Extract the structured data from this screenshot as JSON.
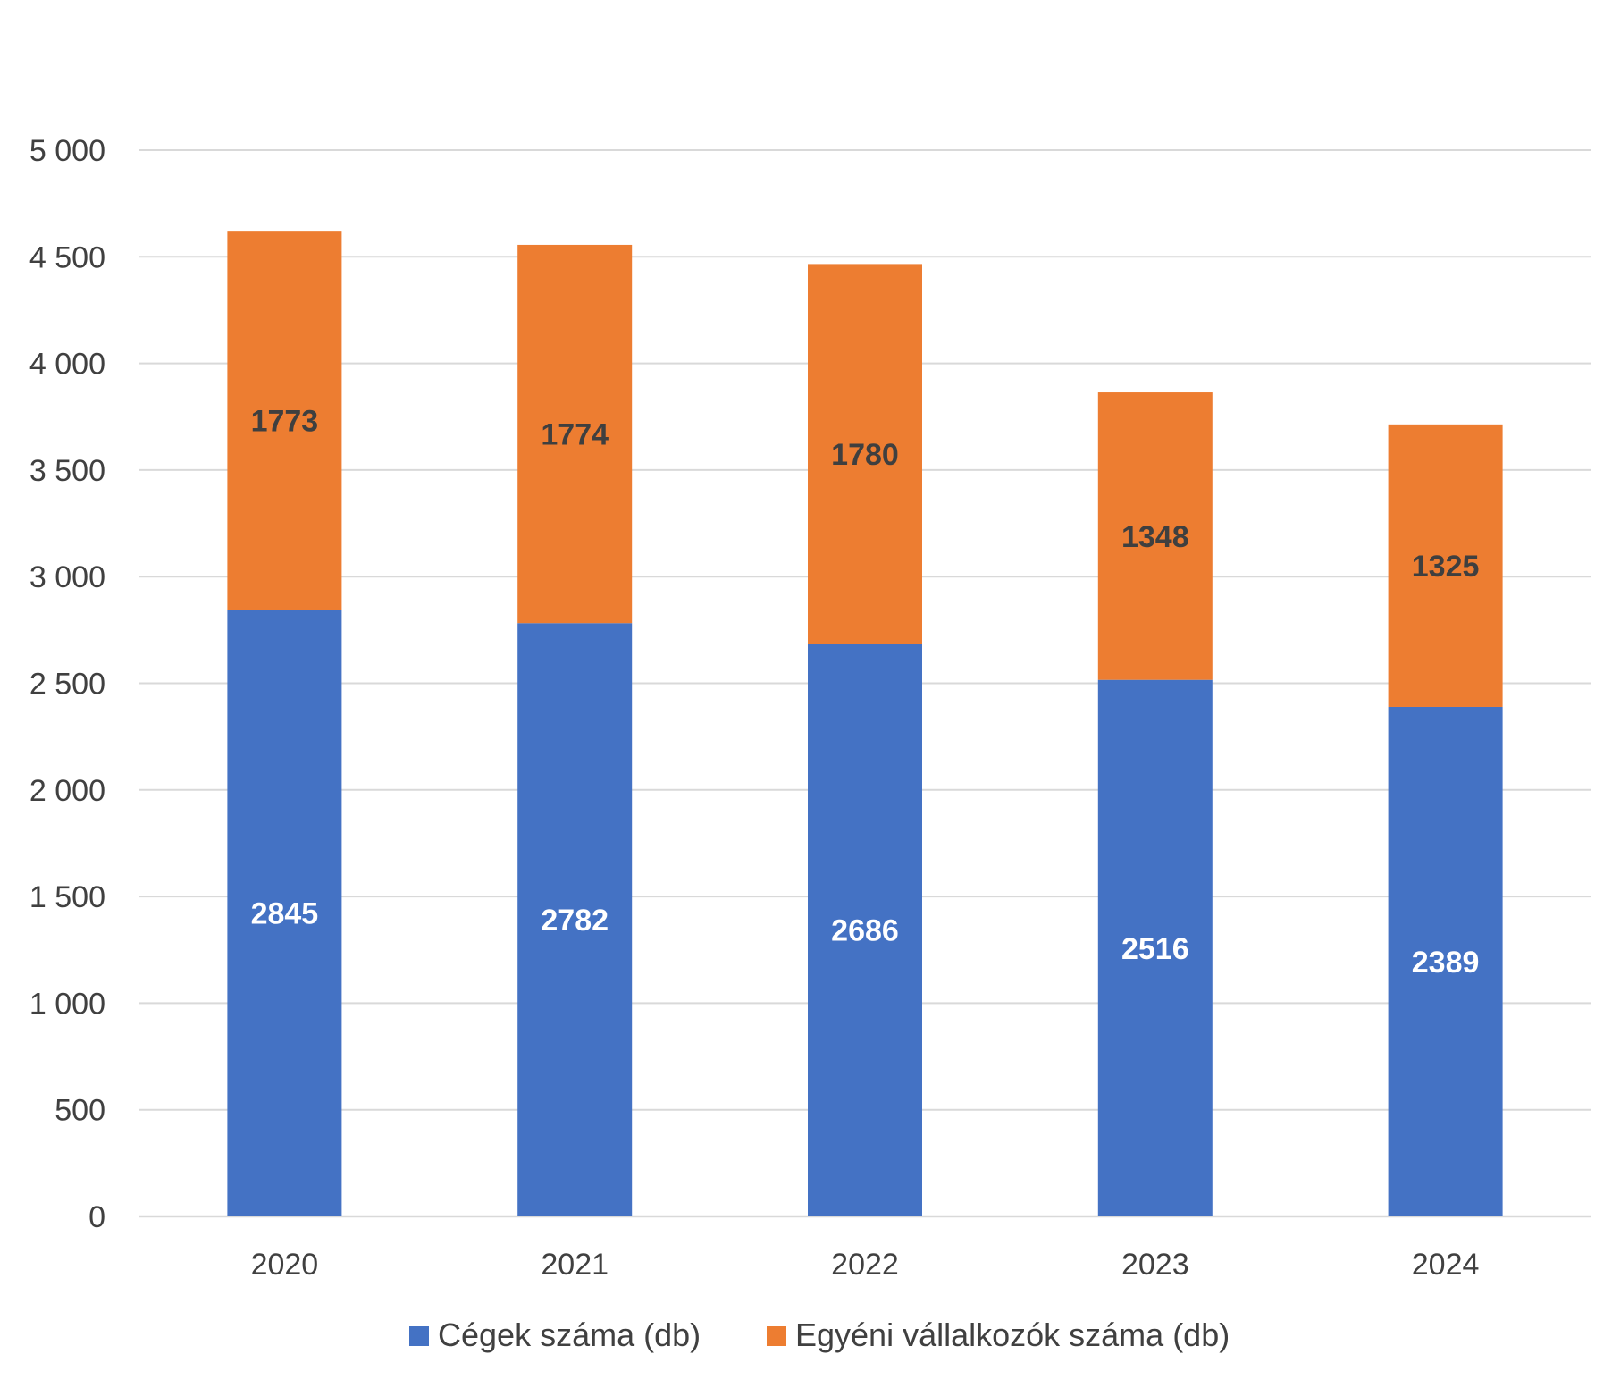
{
  "chart_data": {
    "type": "bar",
    "stacked": true,
    "categories": [
      "2020",
      "2021",
      "2022",
      "2023",
      "2024"
    ],
    "series": [
      {
        "name": "Cégek száma (db)",
        "values": [
          2845,
          2782,
          2686,
          2516,
          2389
        ],
        "color": "#4472C4",
        "label_color": "#FFFFFF"
      },
      {
        "name": "Egyéni vállalkozók száma (db)",
        "values": [
          1773,
          1774,
          1780,
          1348,
          1325
        ],
        "color": "#ED7D31",
        "label_color": "#3F3F3F"
      }
    ],
    "ylim": [
      0,
      5000
    ],
    "yticks": [
      0,
      500,
      1000,
      1500,
      2000,
      2500,
      3000,
      3500,
      4000,
      4500,
      5000
    ],
    "ytick_labels": [
      "0",
      "500",
      "1 000",
      "1 500",
      "2 000",
      "2 500",
      "3 000",
      "3 500",
      "4 000",
      "4 500",
      "5 000"
    ],
    "grid": true,
    "legend_position": "bottom",
    "gridline_color": "#D9D9D9"
  }
}
